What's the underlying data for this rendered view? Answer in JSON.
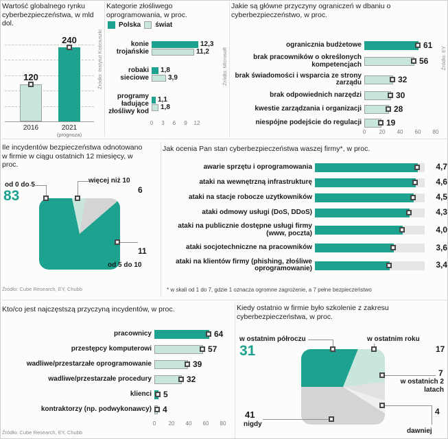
{
  "colors": {
    "teal": "#1CA28E",
    "light_green": "#C9E6DC",
    "gray": "#D4D4D4",
    "light_gray": "#E1E1E1",
    "pale_gray": "#EFEFEF",
    "track": "#E6E6E6"
  },
  "chart_data": [
    {
      "id": "global-market",
      "type": "bar",
      "title": "Wartość globalnego rynku cyberbezpieczeństwa, w mld dol.",
      "categories": [
        "2016",
        "2021"
      ],
      "categories_note": "(prognoza)",
      "values": [
        120,
        240
      ],
      "value_labels": [
        "120",
        "240"
      ],
      "bar_colors": [
        "light_green",
        "teal"
      ],
      "ylim": [
        0,
        250
      ],
      "source": "Źródło: Instytut Kościuszki"
    },
    {
      "id": "malware-categories",
      "type": "grouped-horizontal-bar",
      "title": "Kategorie złośliwego oprogramowania, w proc.",
      "categories": [
        "konie trojańskie",
        "robaki sieciowe",
        "programy ładujące złośliwy kod"
      ],
      "series": [
        {
          "name": "Polska",
          "color": "teal",
          "values": [
            12.3,
            1.8,
            1.1
          ],
          "value_labels": [
            "12,3",
            "1,8",
            "1,1"
          ]
        },
        {
          "name": "świat",
          "color": "light_green",
          "values": [
            11.2,
            3.9,
            1.8
          ],
          "value_labels": [
            "11,2",
            "3,9",
            "1,8"
          ]
        }
      ],
      "xlim": [
        0,
        12
      ],
      "xticks": [
        0,
        3,
        6,
        9,
        12
      ],
      "source": "Źródło: Microsoft"
    },
    {
      "id": "security-limitations",
      "type": "horizontal-bar",
      "title": "Jakie są główne przyczyny ograniczeń w dbaniu o cyberbezpieczeństwo, w proc.",
      "categories": [
        "ogranicznia budżetowe",
        "brak pracowników o określonych kompetencjach",
        "brak świadomości i wsparcia ze strony zarządu",
        "brak odpowiednich narzędzi",
        "kwestie zarządzania i organizacji",
        "niespójne podejście do regulacji"
      ],
      "values": [
        61,
        56,
        32,
        30,
        28,
        19
      ],
      "value_labels": [
        "61",
        "56",
        "32",
        "30",
        "28",
        "19"
      ],
      "bar_colors": [
        "teal",
        "light_green",
        "light_green",
        "light_green",
        "light_green",
        "light_green"
      ],
      "xlim": [
        0,
        80
      ],
      "xticks": [
        0,
        20,
        40,
        60,
        80
      ],
      "source": "Źródło: EY"
    },
    {
      "id": "incidents-count",
      "type": "pie",
      "title": "Ile incydentów bezpieczeństwa odnotowano w firmie w ciągu ostatnich 12 miesięcy, w proc.",
      "slices": [
        {
          "label": "od 0 do 5",
          "value": 83,
          "color": "teal"
        },
        {
          "label": "więcej niż 10",
          "value": 6,
          "color": "light_green"
        },
        {
          "label": "od 5 do 10",
          "value": 11,
          "color": "gray"
        }
      ],
      "draw_order": [
        1,
        2,
        0
      ],
      "start_angle": -12,
      "source": "Źródło: Cube Research, EY, Chubb"
    },
    {
      "id": "security-assessment",
      "type": "horizontal-bar",
      "title": "Jak ocenia Pan stan cyberbezpieczeństwa waszej firmy*, w proc.",
      "categories": [
        "awarie sprzętu i oprogramowania",
        "ataki na wewnętrzną infrastrukturę",
        "ataki na stacje robocze uzytkowników",
        "ataki odmowy usługi (DoS, DDoS)",
        "ataki na publicznie dostępne usługi firmy (www, pocz­ta)",
        "ataki socjotechniczne na pracowników",
        "ataki na klientów firmy (phishing, złośliwe oprogramowanie)"
      ],
      "values": [
        4.7,
        4.6,
        4.5,
        4.3,
        4.0,
        3.6,
        3.4
      ],
      "value_labels": [
        "4,7",
        "4,6",
        "4,5",
        "4,3",
        "4,0",
        "3,6",
        "3,4"
      ],
      "bar_colors": [
        "teal",
        "teal",
        "teal",
        "teal",
        "teal",
        "teal",
        "teal"
      ],
      "xlim": [
        0,
        5
      ],
      "footnote": "* w skali od 1 do 7, gdzie 1 oznacza ogromne zagrożenie, a 7 pełne bezpieczeństwo"
    },
    {
      "id": "incident-causes",
      "type": "horizontal-bar",
      "title": "Kto/co jest najczęstszą przyczyną incydentów, w proc.",
      "categories": [
        "pracownicy",
        "przestępcy komputerowi",
        "wadliwe/przestarzałe oprogramowanie",
        "wadliwe/przestarzałe procedury",
        "klienci",
        "kontraktorzy (np. podwykonawcy)"
      ],
      "values": [
        64,
        57,
        39,
        32,
        5,
        4
      ],
      "value_labels": [
        "64",
        "57",
        "39",
        "32",
        "5",
        "4"
      ],
      "bar_colors": [
        "teal",
        "light_green",
        "light_green",
        "light_green",
        "teal",
        "light_green"
      ],
      "xlim": [
        0,
        80
      ],
      "xticks": [
        0,
        20,
        40,
        60,
        80
      ],
      "source": "Źródło: Cube Research, EY, Chubb"
    },
    {
      "id": "last-training",
      "type": "pie",
      "title": "Kiedy ostatnio w firmie było szkolenie z zakresu cyberbezpieczeństwa, w proc.",
      "slices": [
        {
          "label": "w ostatnim półroczu",
          "value": 31,
          "color": "teal"
        },
        {
          "label": "w ostatnim roku",
          "value": 17,
          "color": "light_green"
        },
        {
          "label": "w ostatnich 2 latach",
          "value": 7,
          "color": "light_gray"
        },
        {
          "label": "dawniej",
          "value": 4,
          "color": "pale_gray"
        },
        {
          "label": "nigdy",
          "value": 41,
          "color": "gray"
        }
      ],
      "draw_order": [
        0,
        1,
        2,
        3,
        4
      ],
      "start_angle": 270
    }
  ]
}
